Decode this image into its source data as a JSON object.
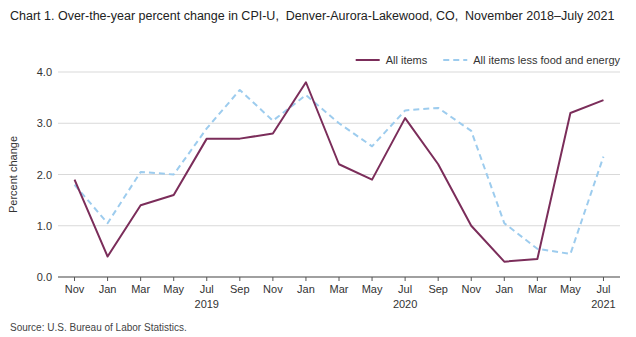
{
  "chart_data": {
    "type": "line",
    "title": "Chart 1. Over-the-year percent change in CPI-U,  Denver-Aurora-Lakewood, CO,  November 2018–July 2021",
    "y_label": "Percent change",
    "source": "Source: U.S. Bureau of Labor Statistics.",
    "categories": [
      "Nov",
      "Jan",
      "Mar",
      "May",
      "Jul",
      "Sep",
      "Nov",
      "Jan",
      "Mar",
      "May",
      "Jul",
      "Sep",
      "Nov",
      "Jan",
      "Mar",
      "May",
      "Jul"
    ],
    "annotations": [
      {
        "text": "2019",
        "x": 4
      },
      {
        "text": "2020",
        "x": 10
      },
      {
        "text": "2021",
        "x": 16
      }
    ],
    "series": [
      {
        "name": "All items",
        "color": "#7B2D5A",
        "line_style": "solid",
        "values": [
          1.9,
          0.4,
          1.4,
          1.6,
          2.7,
          2.7,
          2.8,
          3.8,
          2.2,
          1.9,
          3.1,
          2.2,
          1.0,
          0.3,
          0.35,
          3.2,
          3.45
        ]
      },
      {
        "name": "All items less food and energy",
        "color": "#9DCCEE",
        "line_style": "dashed",
        "values": [
          1.8,
          1.05,
          2.05,
          2.0,
          2.9,
          3.65,
          3.05,
          3.55,
          3.0,
          2.55,
          3.25,
          3.3,
          2.85,
          1.05,
          0.55,
          0.45,
          2.35
        ]
      }
    ],
    "ylim": [
      0.0,
      4.0
    ],
    "yticks": [
      {
        "value": 0.0,
        "label": "0.0"
      },
      {
        "value": 1.0,
        "label": "1.0"
      },
      {
        "value": 2.0,
        "label": "2.0"
      },
      {
        "value": 3.0,
        "label": "3.0"
      },
      {
        "value": 4.0,
        "label": "4.0"
      }
    ],
    "grid": true,
    "legend": "upper right"
  }
}
